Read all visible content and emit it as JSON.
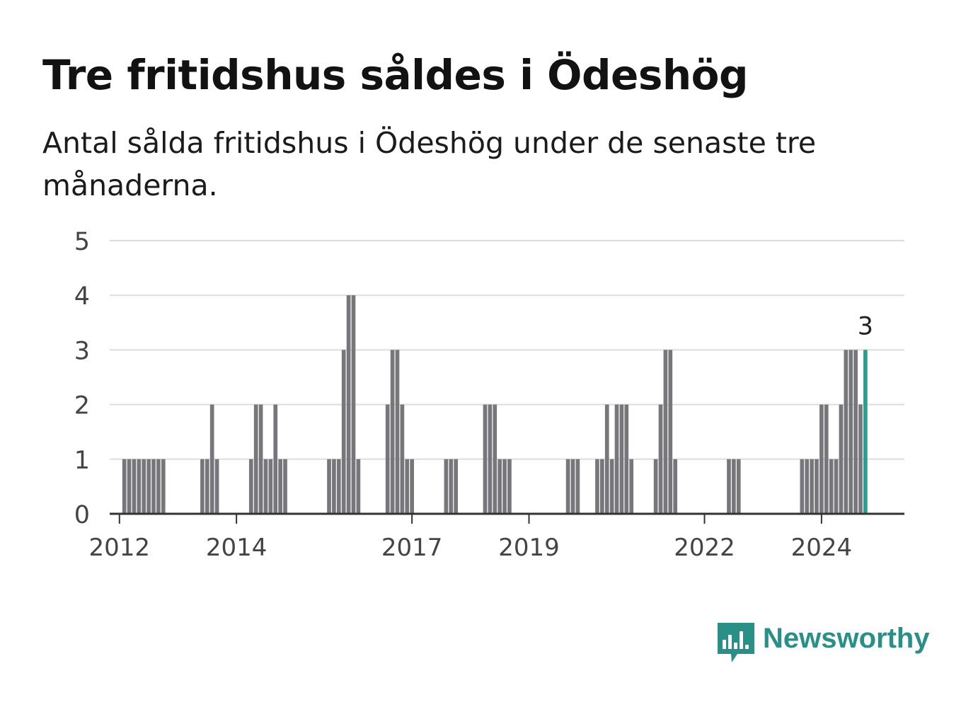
{
  "header": {
    "title": "Tre fritidshus såldes i Ödeshög",
    "subtitle": "Antal sålda fritidshus i Ödeshög under de senaste tre månaderna."
  },
  "brand": {
    "name": "Newsworthy",
    "logo_icon": "newsworthy-bar-chart-icon"
  },
  "colors": {
    "bar": "#77777b",
    "highlight": "#2a9d8f",
    "grid": "#dddddd",
    "axis": "#333333",
    "brand": "#2a8f87"
  },
  "chart_data": {
    "type": "bar",
    "title": "Tre fritidshus såldes i Ödeshög",
    "subtitle": "Antal sålda fritidshus i Ödeshög under de senaste tre månaderna.",
    "xlabel": "",
    "ylabel": "",
    "ylim": [
      0,
      5
    ],
    "yticks": [
      0,
      1,
      2,
      3,
      4,
      5
    ],
    "xlim": [
      "2011-11",
      "2025-06"
    ],
    "xticks": [
      "2012",
      "2014",
      "2017",
      "2019",
      "2022",
      "2024"
    ],
    "grid": true,
    "bar_width_months": 1,
    "highlight_label": "3",
    "series": [
      {
        "x": [
          "2012-02",
          "2012-03",
          "2012-04",
          "2012-05",
          "2012-06",
          "2012-07",
          "2012-08",
          "2012-09",
          "2012-10",
          "2013-06",
          "2013-07",
          "2013-08",
          "2013-09",
          "2014-04",
          "2014-05",
          "2014-06",
          "2014-07",
          "2014-08",
          "2014-09",
          "2014-10",
          "2014-11",
          "2015-08",
          "2015-09",
          "2015-10",
          "2015-11",
          "2015-12",
          "2016-01",
          "2016-02",
          "2016-08",
          "2016-09",
          "2016-10",
          "2016-11",
          "2016-12",
          "2017-01",
          "2017-08",
          "2017-09",
          "2017-10",
          "2018-04",
          "2018-05",
          "2018-06",
          "2018-07",
          "2018-08",
          "2018-09",
          "2019-09",
          "2019-10",
          "2019-11",
          "2020-03",
          "2020-04",
          "2020-05",
          "2020-06",
          "2020-07",
          "2020-08",
          "2020-09",
          "2020-10",
          "2021-03",
          "2021-04",
          "2021-05",
          "2021-06",
          "2021-07",
          "2022-06",
          "2022-07",
          "2022-08",
          "2023-09",
          "2023-10",
          "2023-11",
          "2023-12",
          "2024-01",
          "2024-02",
          "2024-03",
          "2024-04",
          "2024-05",
          "2024-06",
          "2024-07",
          "2024-08",
          "2024-09",
          "2024-10"
        ],
        "values": [
          1,
          1,
          1,
          1,
          1,
          1,
          1,
          1,
          1,
          1,
          1,
          2,
          1,
          1,
          2,
          2,
          1,
          1,
          2,
          1,
          1,
          1,
          1,
          1,
          3,
          4,
          4,
          1,
          2,
          3,
          3,
          2,
          1,
          1,
          1,
          1,
          1,
          2,
          2,
          2,
          1,
          1,
          1,
          1,
          1,
          1,
          1,
          1,
          2,
          1,
          2,
          2,
          2,
          1,
          1,
          2,
          3,
          3,
          1,
          1,
          1,
          1,
          1,
          1,
          1,
          1,
          2,
          2,
          1,
          1,
          2,
          3,
          3,
          3,
          2,
          3
        ]
      }
    ]
  }
}
